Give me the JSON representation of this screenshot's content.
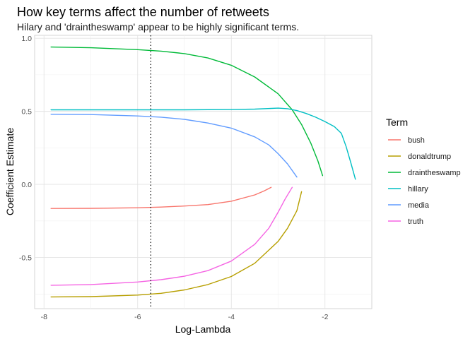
{
  "chart_data": {
    "type": "line",
    "title": "How key terms affect the number of retweets",
    "subtitle": "Hilary and 'draintheswamp' appear to be highly significant terms.",
    "xlabel": "Log-Lambda",
    "ylabel": "Coefficient Estimate",
    "xlim": [
      -8.2,
      -1.0
    ],
    "ylim": [
      -0.85,
      1.02
    ],
    "x_ticks": [
      -8,
      -6,
      -4,
      -2
    ],
    "x_tick_labels": [
      "-8",
      "-6",
      "-4",
      "-2"
    ],
    "y_ticks": [
      -0.5,
      0.0,
      0.5,
      1.0
    ],
    "y_tick_labels": [
      "-0.5",
      "0.0",
      "0.5",
      "1.0"
    ],
    "x_minor_ticks": [
      -7,
      -5,
      -3
    ],
    "y_minor_ticks": [
      -0.75,
      -0.25,
      0.25,
      0.75
    ],
    "grid": true,
    "vline_x": -5.72,
    "legend": {
      "title": "Term",
      "position": "right"
    },
    "series": [
      {
        "name": "bush",
        "color": "#F8766D",
        "x": [
          -7.85,
          -7.0,
          -6.0,
          -5.5,
          -5.0,
          -4.5,
          -4.0,
          -3.5,
          -3.3,
          -3.15
        ],
        "y": [
          -0.165,
          -0.164,
          -0.16,
          -0.155,
          -0.148,
          -0.138,
          -0.115,
          -0.072,
          -0.045,
          -0.02
        ]
      },
      {
        "name": "donaldtrump",
        "color": "#B79F00",
        "x": [
          -7.85,
          -7.0,
          -6.0,
          -5.5,
          -5.0,
          -4.5,
          -4.0,
          -3.5,
          -3.0,
          -2.8,
          -2.6,
          -2.5
        ],
        "y": [
          -0.77,
          -0.768,
          -0.757,
          -0.745,
          -0.722,
          -0.685,
          -0.63,
          -0.54,
          -0.39,
          -0.3,
          -0.18,
          -0.05
        ]
      },
      {
        "name": "draintheswamp",
        "color": "#00BA38",
        "x": [
          -7.85,
          -7.0,
          -6.0,
          -5.5,
          -5.0,
          -4.5,
          -4.0,
          -3.5,
          -3.0,
          -2.7,
          -2.5,
          -2.3,
          -2.15,
          -2.05
        ],
        "y": [
          0.94,
          0.935,
          0.922,
          0.912,
          0.895,
          0.865,
          0.815,
          0.735,
          0.62,
          0.51,
          0.41,
          0.28,
          0.16,
          0.06
        ]
      },
      {
        "name": "hillary",
        "color": "#00BFC4",
        "x": [
          -7.85,
          -7.0,
          -6.0,
          -5.0,
          -4.0,
          -3.5,
          -3.0,
          -2.8,
          -2.6,
          -2.4,
          -2.2,
          -2.0,
          -1.8,
          -1.65,
          -1.55,
          -1.45,
          -1.35
        ],
        "y": [
          0.51,
          0.51,
          0.51,
          0.51,
          0.512,
          0.515,
          0.522,
          0.518,
          0.505,
          0.485,
          0.46,
          0.43,
          0.395,
          0.35,
          0.26,
          0.15,
          0.035
        ]
      },
      {
        "name": "media",
        "color": "#619CFF",
        "x": [
          -7.85,
          -7.0,
          -6.0,
          -5.5,
          -5.0,
          -4.5,
          -4.0,
          -3.5,
          -3.2,
          -3.0,
          -2.8,
          -2.6
        ],
        "y": [
          0.48,
          0.478,
          0.468,
          0.46,
          0.445,
          0.42,
          0.385,
          0.325,
          0.27,
          0.21,
          0.14,
          0.05
        ]
      },
      {
        "name": "truth",
        "color": "#F564E3",
        "x": [
          -7.85,
          -7.0,
          -6.0,
          -5.5,
          -5.0,
          -4.5,
          -4.0,
          -3.5,
          -3.2,
          -3.0,
          -2.85,
          -2.7
        ],
        "y": [
          -0.69,
          -0.685,
          -0.668,
          -0.652,
          -0.628,
          -0.59,
          -0.525,
          -0.41,
          -0.3,
          -0.19,
          -0.1,
          -0.02
        ]
      }
    ]
  }
}
